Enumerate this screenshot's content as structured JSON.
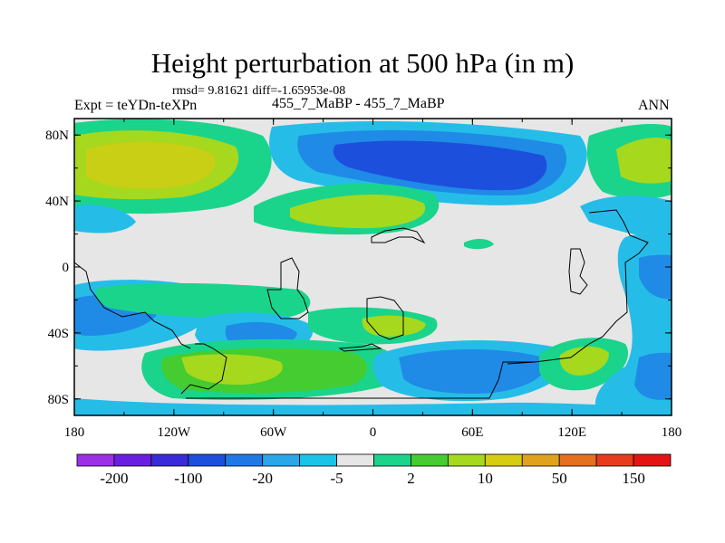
{
  "title": "Height perturbation at 500 hPa (in m)",
  "stats": "rmsd= 9.81621 diff=-1.65953e-08",
  "left_label": "Expt = teYDn-teXPn",
  "center_label": "455_7_MaBP - 455_7_MaBP",
  "right_label": "ANN",
  "lat_ticks": [
    {
      "label": "80N",
      "lat": 80
    },
    {
      "label": "40N",
      "lat": 40
    },
    {
      "label": "0",
      "lat": 0
    },
    {
      "label": "40S",
      "lat": -40
    },
    {
      "label": "80S",
      "lat": -80
    }
  ],
  "lon_ticks": [
    {
      "label": "180",
      "lon": -180
    },
    {
      "label": "120W",
      "lon": -120
    },
    {
      "label": "60W",
      "lon": -60
    },
    {
      "label": "0",
      "lon": 0
    },
    {
      "label": "60E",
      "lon": 60
    },
    {
      "label": "120E",
      "lon": 120
    },
    {
      "label": "180",
      "lon": 180
    }
  ],
  "colorbar": {
    "colors": [
      "#9b30e6",
      "#6a1fe0",
      "#3a2bd8",
      "#1d4fdd",
      "#1f78e6",
      "#2aa6ea",
      "#19c4e8",
      "#e6e6e6",
      "#1ad48c",
      "#44cc30",
      "#a6d81e",
      "#d6cc10",
      "#e0a21c",
      "#e5701e",
      "#e83a1c",
      "#e51414"
    ],
    "labels": [
      "-200",
      "-100",
      "-20",
      "-5",
      "2",
      "10",
      "50",
      "150"
    ]
  },
  "legend_palette": {
    "light_blue": "#25bde8",
    "mid_blue": "#1f8be6",
    "deep_blue": "#1d4fdd",
    "mint": "#1ad48c",
    "green": "#44cc30",
    "yellow_green": "#a6d81e",
    "olive": "#c9cf14",
    "neutral": "#e6e6e6"
  }
}
